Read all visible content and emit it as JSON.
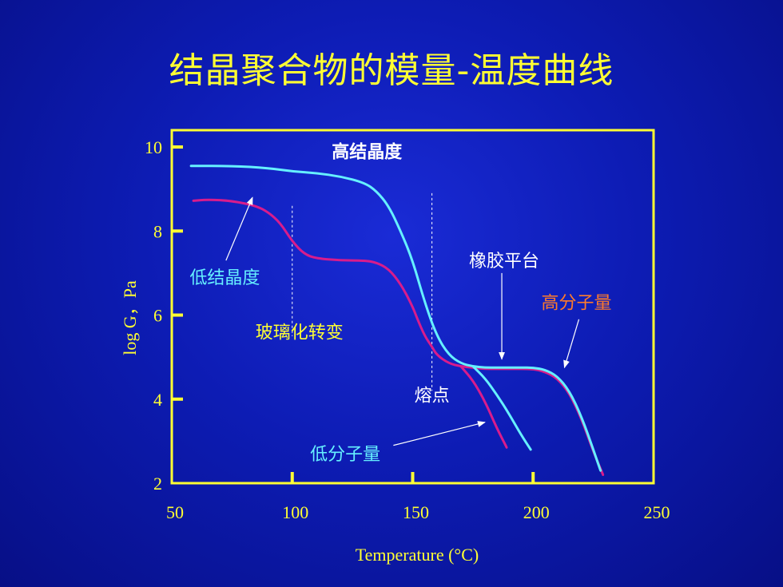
{
  "slide": {
    "title": "结晶聚合物的模量-温度曲线"
  },
  "colors": {
    "background": "#0d1cb4",
    "axis": "#ffff33",
    "high_crystallinity_curve": "#66f0ff",
    "low_crystallinity_curve": "#d81c8c",
    "annotation_cyan": "#66f0ff",
    "annotation_orange": "#ff7b2a",
    "annotation_white": "#ffffff",
    "annotation_yellow": "#ffff33"
  },
  "chart_data": {
    "type": "line",
    "xlabel": "Temperature (°C)",
    "ylabel": "log G，Pa",
    "xlim": [
      50,
      250
    ],
    "ylim": [
      2,
      10.4
    ],
    "x_ticks": [
      50,
      100,
      150,
      200,
      250
    ],
    "y_ticks": [
      2,
      4,
      6,
      8,
      10
    ],
    "grid": false,
    "legend": "none",
    "series": [
      {
        "name": "高结晶度",
        "x": [
          58,
          75,
          90,
          100,
          110,
          120,
          130,
          135,
          140,
          145,
          150,
          155,
          160,
          165,
          170,
          175,
          180,
          185,
          190,
          195,
          200,
          205,
          210,
          215,
          220,
          225,
          228
        ],
        "y": [
          9.55,
          9.55,
          9.5,
          9.42,
          9.38,
          9.3,
          9.15,
          8.95,
          8.6,
          8.0,
          7.3,
          6.3,
          5.5,
          5.05,
          4.85,
          4.78,
          4.75,
          4.75,
          4.75,
          4.75,
          4.75,
          4.7,
          4.55,
          4.2,
          3.6,
          2.8,
          2.3
        ]
      },
      {
        "name": "低结晶度",
        "x": [
          59,
          65,
          75,
          85,
          90,
          95,
          100,
          105,
          110,
          120,
          130,
          135,
          140,
          145,
          150,
          152,
          155,
          158,
          160,
          165,
          170,
          175,
          180,
          190,
          200,
          205,
          210,
          215,
          220,
          225,
          229
        ],
        "y": [
          8.72,
          8.75,
          8.72,
          8.6,
          8.45,
          8.2,
          7.75,
          7.45,
          7.35,
          7.3,
          7.3,
          7.25,
          7.1,
          6.75,
          6.2,
          5.9,
          5.5,
          5.25,
          5.05,
          4.85,
          4.78,
          4.75,
          4.72,
          4.72,
          4.72,
          4.65,
          4.5,
          4.15,
          3.55,
          2.75,
          2.2
        ]
      },
      {
        "name": "低分子量 (高结晶度)",
        "x": [
          175,
          180,
          185,
          190,
          195,
          199
        ],
        "y": [
          4.78,
          4.5,
          4.1,
          3.65,
          3.15,
          2.8
        ]
      },
      {
        "name": "低分子量 (低结晶度)",
        "x": [
          170,
          175,
          180,
          185,
          189
        ],
        "y": [
          4.78,
          4.45,
          3.95,
          3.3,
          2.85
        ]
      }
    ],
    "reference_lines": [
      {
        "label": "玻璃化转变",
        "x": 100,
        "y_range": [
          5.5,
          8.6
        ]
      },
      {
        "label": "熔点",
        "x": 158,
        "y_range": [
          4.2,
          8.9
        ]
      }
    ],
    "annotations": [
      {
        "text": "高结晶度",
        "color": "white",
        "x": 131,
        "y": 9.9
      },
      {
        "text": "低结晶度",
        "color": "cyan",
        "x": 72,
        "y": 6.9
      },
      {
        "text": "玻璃化转变",
        "color": "yellow",
        "x": 103,
        "y": 5.6
      },
      {
        "text": "橡胶平台",
        "color": "white",
        "x": 188,
        "y": 7.3
      },
      {
        "text": "高分子量",
        "color": "orange",
        "x": 218,
        "y": 6.3
      },
      {
        "text": "熔点",
        "color": "white",
        "x": 158,
        "y": 4.1
      },
      {
        "text": "低分子量",
        "color": "cyan",
        "x": 122,
        "y": 2.7
      }
    ]
  }
}
